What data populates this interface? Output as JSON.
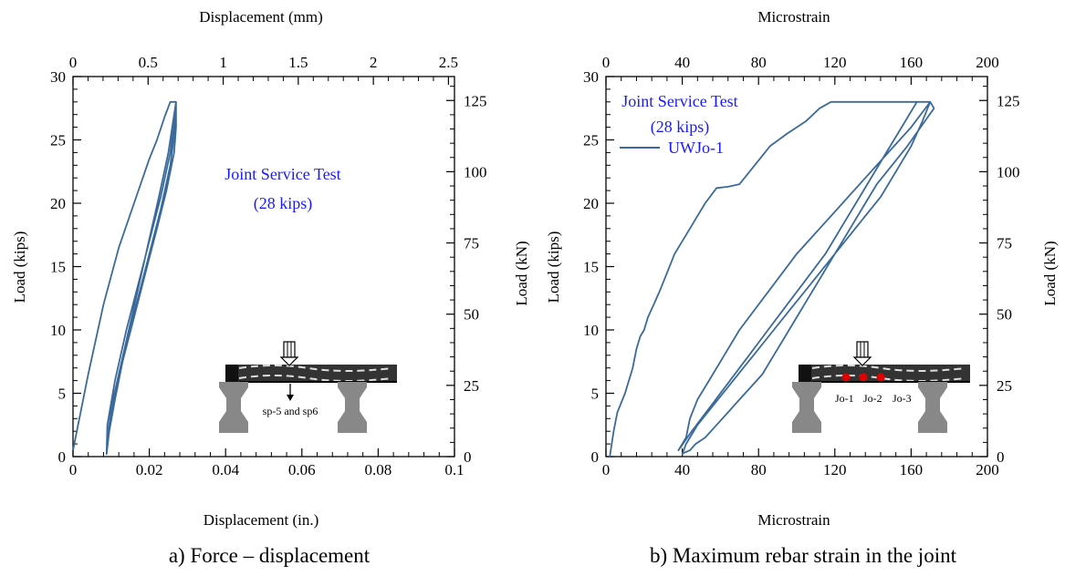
{
  "chart_data": [
    {
      "type": "line",
      "caption": "a) Force – displacement",
      "xlabel": "Displacement (in.)",
      "x2label": "Displacement (mm)",
      "ylabel": "Load (kips)",
      "y2label": "Load (kN)",
      "xlim": [
        0,
        0.1
      ],
      "ylim": [
        0,
        30
      ],
      "x2lim": [
        0,
        2.54
      ],
      "y2lim": [
        0,
        133.4
      ],
      "xticks": [
        "0",
        "0.02",
        "0.04",
        "0.06",
        "0.08",
        "0.1"
      ],
      "yticks": [
        "0",
        "5",
        "10",
        "15",
        "20",
        "25",
        "30"
      ],
      "x2ticks": [
        "0",
        "0.5",
        "1",
        "1.5",
        "2",
        "2.5"
      ],
      "y2ticks": [
        "0",
        "25",
        "50",
        "75",
        "100",
        "125"
      ],
      "annotation": [
        "Joint Service Test",
        "(28 kips)"
      ],
      "inset_label": "sp-5 and sp6",
      "line_color": "#3a6a9c",
      "series": [
        {
          "x": [
            0.0,
            0.004,
            0.008,
            0.012,
            0.016,
            0.02,
            0.022,
            0.024,
            0.0255,
            0.027,
            0.027,
            0.0265,
            0.0245,
            0.022,
            0.019,
            0.016,
            0.013,
            0.011,
            0.0095,
            0.0088,
            0.009,
            0.011,
            0.014,
            0.017,
            0.02,
            0.023,
            0.0255,
            0.027,
            0.027,
            0.0255,
            0.023,
            0.02,
            0.017,
            0.014,
            0.0115,
            0.0098,
            0.009,
            0.0105,
            0.0135,
            0.0165,
            0.0195,
            0.0225,
            0.025,
            0.027
          ],
          "y": [
            0.5,
            6.5,
            12.0,
            16.5,
            20.0,
            23.5,
            25.0,
            26.8,
            28.0,
            28.0,
            26.0,
            24.0,
            21.0,
            18.0,
            14.5,
            11.0,
            7.5,
            4.5,
            2.0,
            0.2,
            2.5,
            6.0,
            10.0,
            13.5,
            17.0,
            20.5,
            24.0,
            27.5,
            26.5,
            23.0,
            19.5,
            16.0,
            12.5,
            9.0,
            5.5,
            3.0,
            1.5,
            4.5,
            8.5,
            12.5,
            16.5,
            20.5,
            24.0,
            28.0
          ]
        }
      ]
    },
    {
      "type": "line",
      "caption": "b) Maximum rebar strain in the joint",
      "xlabel": "Microstrain",
      "x2label": "Microstrain",
      "ylabel": "Load (kips)",
      "y2label": "Load (kN)",
      "xlim": [
        0,
        200
      ],
      "ylim": [
        0,
        30
      ],
      "x2lim": [
        0,
        200
      ],
      "y2lim": [
        0,
        133.4
      ],
      "xticks": [
        "0",
        "40",
        "80",
        "120",
        "160",
        "200"
      ],
      "yticks": [
        "0",
        "5",
        "10",
        "15",
        "20",
        "25",
        "30"
      ],
      "x2ticks": [
        "0",
        "40",
        "80",
        "120",
        "160",
        "200"
      ],
      "y2ticks": [
        "0",
        "25",
        "50",
        "75",
        "100",
        "125"
      ],
      "annotation": [
        "Joint Service Test",
        "(28 kips)"
      ],
      "legend": [
        "UWJo-1"
      ],
      "inset_labels": [
        "Jo-1",
        "Jo-2",
        "Jo-3"
      ],
      "line_color": "#3a6a9c",
      "series": [
        {
          "name": "UWJo-1",
          "x": [
            2,
            4,
            6,
            10,
            14,
            16,
            18,
            20,
            22,
            25,
            28,
            32,
            36,
            40,
            44,
            48,
            52,
            58,
            64,
            70,
            78,
            86,
            95,
            105,
            112,
            118,
            120,
            130,
            140,
            150,
            158,
            165,
            170,
            172,
            165,
            158,
            150,
            142,
            136,
            130,
            124,
            118,
            112,
            106,
            100,
            94,
            88,
            82,
            76,
            70,
            64,
            58,
            52,
            47,
            44,
            41,
            40,
            42,
            48,
            56,
            64,
            72,
            80,
            88,
            96,
            104,
            112,
            120,
            128,
            136,
            144,
            152,
            160,
            166,
            170,
            160,
            148,
            136,
            124,
            112,
            100,
            90,
            80,
            70,
            62,
            54,
            48,
            44,
            42,
            38,
            45,
            55,
            65,
            75,
            85,
            95,
            105,
            115,
            125,
            135,
            145,
            155,
            163
          ],
          "y": [
            0,
            2.0,
            3.5,
            5.0,
            7.0,
            8.5,
            9.5,
            10.0,
            11.0,
            12.0,
            13.0,
            14.5,
            16.0,
            17.0,
            18.0,
            19.0,
            20.0,
            21.2,
            21.3,
            21.5,
            23.0,
            24.5,
            25.5,
            26.5,
            27.5,
            28.0,
            28.0,
            28.0,
            28.0,
            28.0,
            28.0,
            28.0,
            28.0,
            27.5,
            26.0,
            24.5,
            23.0,
            21.5,
            20.0,
            18.5,
            17.0,
            15.5,
            14.0,
            12.5,
            11.0,
            9.5,
            8.0,
            6.5,
            5.5,
            4.5,
            3.5,
            2.5,
            1.5,
            1.0,
            0.5,
            0.3,
            0.2,
            1.0,
            2.5,
            4.0,
            5.5,
            7.0,
            8.5,
            10.0,
            11.5,
            13.0,
            14.5,
            16.0,
            17.5,
            19.0,
            20.5,
            22.5,
            24.5,
            26.5,
            28.0,
            26.0,
            24.0,
            22.0,
            20.0,
            18.0,
            16.0,
            14.0,
            12.0,
            10.0,
            8.0,
            6.0,
            4.5,
            3.0,
            1.5,
            0.5,
            2.0,
            4.0,
            6.0,
            8.0,
            10.0,
            12.0,
            14.0,
            16.0,
            18.5,
            21.0,
            23.5,
            26.0,
            28.0
          ]
        }
      ]
    }
  ]
}
